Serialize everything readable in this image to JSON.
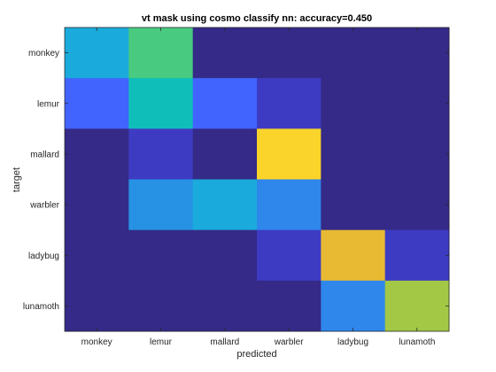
{
  "chart_data": {
    "type": "heatmap",
    "title": "vt mask using cosmo classify nn: accuracy=0.450",
    "xlabel": "predicted",
    "ylabel": "target",
    "x_categories": [
      "monkey",
      "lemur",
      "mallard",
      "warbler",
      "ladybug",
      "lunamoth"
    ],
    "y_categories": [
      "monkey",
      "lemur",
      "mallard",
      "warbler",
      "ladybug",
      "lunamoth"
    ],
    "colormap": "parula",
    "clim": [
      0,
      1
    ],
    "grid": false,
    "values": [
      [
        0.45,
        0.6,
        0.0,
        0.0,
        0.0,
        0.0
      ],
      [
        0.2,
        0.5,
        0.2,
        0.1,
        0.0,
        0.0
      ],
      [
        0.0,
        0.1,
        0.0,
        0.9,
        0.0,
        0.0
      ],
      [
        0.0,
        0.35,
        0.45,
        0.3,
        0.0,
        0.0
      ],
      [
        0.0,
        0.0,
        0.0,
        0.1,
        0.8,
        0.1
      ],
      [
        0.0,
        0.0,
        0.0,
        0.0,
        0.3,
        0.7
      ]
    ]
  }
}
